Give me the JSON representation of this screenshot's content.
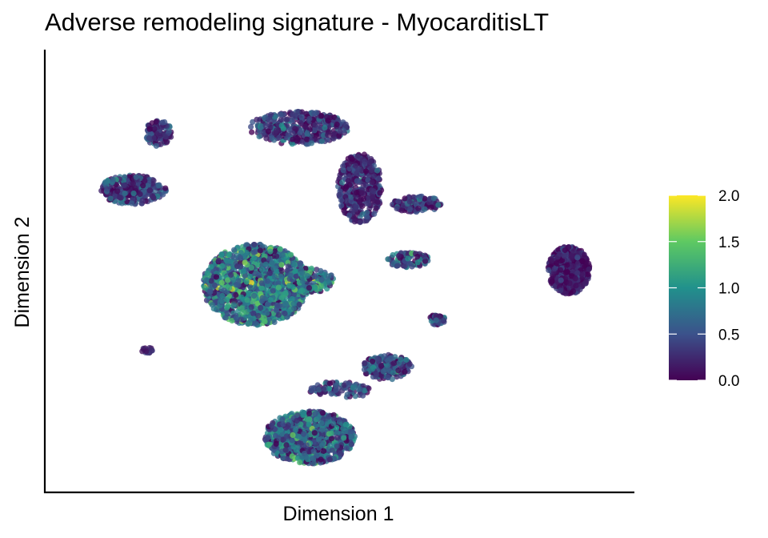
{
  "chart_data": {
    "type": "scatter",
    "title": "Adverse remodeling signature - MyocarditisLT",
    "xlabel": "Dimension 1",
    "ylabel": "Dimension 2",
    "xlim": [
      0,
      100
    ],
    "ylim": [
      0,
      100
    ],
    "axis_ticks": false,
    "grid": false,
    "legend": "right",
    "colorbar": {
      "range": [
        0.0,
        2.0
      ],
      "ticks": [
        "0.0",
        "0.5",
        "1.0",
        "1.5",
        "2.0"
      ],
      "colormap": "viridis",
      "colors": [
        "#440154",
        "#3b528b",
        "#21918c",
        "#5ec962",
        "#fde725"
      ]
    },
    "point_alpha": 0.78,
    "clusters": [
      {
        "id": "top-arm",
        "x": 17.2,
        "y": 83.2,
        "rx": 2.5,
        "ry": 3.2,
        "n": 110,
        "value_mean": 0.3,
        "value_sd": 0.3
      },
      {
        "id": "left-arc",
        "x": 12.5,
        "y": 69.5,
        "rx": 6.0,
        "ry": 3.5,
        "n": 300,
        "value_mean": 0.35,
        "value_sd": 0.3
      },
      {
        "id": "top-body",
        "x": 42.5,
        "y": 84.5,
        "rx": 9.0,
        "ry": 4.0,
        "n": 380,
        "value_mean": 0.3,
        "value_sd": 0.3
      },
      {
        "id": "top-tail",
        "x": 53.6,
        "y": 70.0,
        "rx": 4.0,
        "ry": 8.5,
        "n": 420,
        "value_mean": 0.25,
        "value_sd": 0.25
      },
      {
        "id": "top-right-branch",
        "x": 64.0,
        "y": 66.0,
        "rx": 4.5,
        "ry": 2.0,
        "n": 120,
        "value_mean": 0.3,
        "value_sd": 0.3
      },
      {
        "id": "center-large",
        "x": 34.7,
        "y": 46.5,
        "rx": 9.6,
        "ry": 9.8,
        "n": 1400,
        "value_mean": 0.75,
        "value_sd": 0.42
      },
      {
        "id": "center-tail",
        "x": 44.5,
        "y": 47.5,
        "rx": 4.5,
        "ry": 3.0,
        "n": 180,
        "value_mean": 0.8,
        "value_sd": 0.4
      },
      {
        "id": "mid-small",
        "x": 62.5,
        "y": 52.5,
        "rx": 4.0,
        "ry": 1.8,
        "n": 100,
        "value_mean": 0.4,
        "value_sd": 0.35
      },
      {
        "id": "right-ball",
        "x": 91.5,
        "y": 50.0,
        "rx": 3.8,
        "ry": 5.8,
        "n": 500,
        "value_mean": 0.15,
        "value_sd": 0.2
      },
      {
        "id": "lower-small",
        "x": 67.5,
        "y": 38.0,
        "rx": 1.6,
        "ry": 1.2,
        "n": 45,
        "value_mean": 0.4,
        "value_sd": 0.3
      },
      {
        "id": "left-stub",
        "x": 15.0,
        "y": 30.5,
        "rx": 1.0,
        "ry": 1.0,
        "n": 14,
        "value_mean": 0.2,
        "value_sd": 0.1
      },
      {
        "id": "bottom-arm",
        "x": 58.5,
        "y": 26.5,
        "rx": 4.5,
        "ry": 3.0,
        "n": 180,
        "value_mean": 0.4,
        "value_sd": 0.3
      },
      {
        "id": "bottom-bridge",
        "x": 50.0,
        "y": 21.0,
        "rx": 6.0,
        "ry": 2.0,
        "n": 90,
        "value_mean": 0.4,
        "value_sd": 0.3
      },
      {
        "id": "bottom-blob",
        "x": 44.5,
        "y": 9.5,
        "rx": 8.2,
        "ry": 6.4,
        "n": 900,
        "value_mean": 0.6,
        "value_sd": 0.38
      }
    ]
  }
}
